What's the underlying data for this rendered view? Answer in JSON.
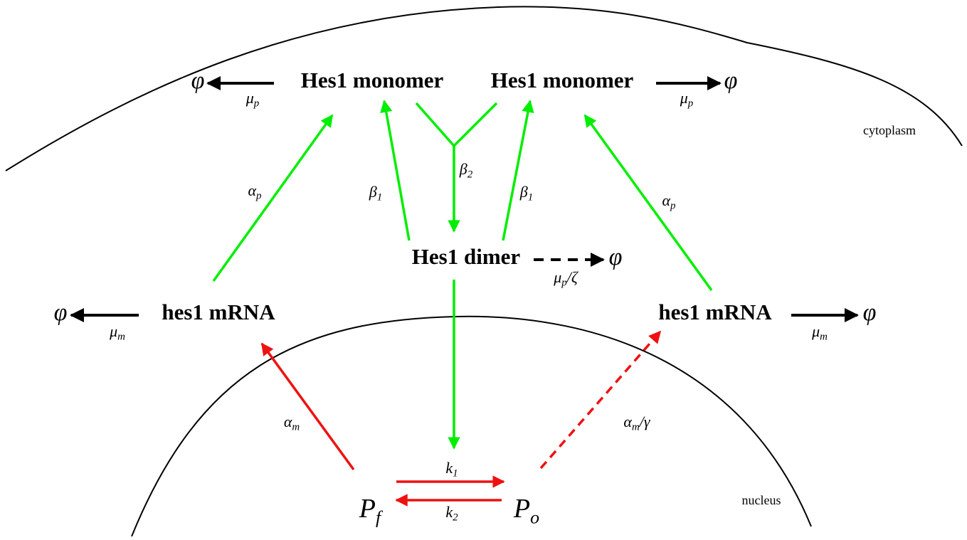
{
  "regions": [
    {
      "label": "cytoplasm"
    },
    {
      "label": "nucleus"
    }
  ],
  "nodes": [
    {
      "label": "Hes1 monomer"
    },
    {
      "label": "Hes1 monomer"
    },
    {
      "label": "Hes1 dimer"
    },
    {
      "label": "hes1 mRNA"
    },
    {
      "label": "hes1 mRNA"
    },
    {
      "symbol": "P",
      "sub": "f"
    },
    {
      "symbol": "P",
      "sub": "o"
    }
  ],
  "sinks": [
    "φ",
    "φ",
    "φ",
    "φ",
    "φ"
  ],
  "rates": [
    {
      "symbol": "μ",
      "sub": "p"
    },
    {
      "symbol": "μ",
      "sub": "p"
    },
    {
      "symbol": "α",
      "sub": "p"
    },
    {
      "symbol": "β",
      "sub": "1"
    },
    {
      "symbol": "β",
      "sub": "2"
    },
    {
      "symbol": "β",
      "sub": "1"
    },
    {
      "symbol": "α",
      "sub": "p"
    },
    {
      "symbol": "μ",
      "sub": "p",
      "suffix": "/ζ"
    },
    {
      "symbol": "μ",
      "sub": "m"
    },
    {
      "symbol": "μ",
      "sub": "m"
    },
    {
      "symbol": "α",
      "sub": "m"
    },
    {
      "symbol": "α",
      "sub": "m",
      "suffix": "/γ"
    },
    {
      "symbol": "k",
      "sub": "1"
    },
    {
      "symbol": "k",
      "sub": "2"
    }
  ]
}
